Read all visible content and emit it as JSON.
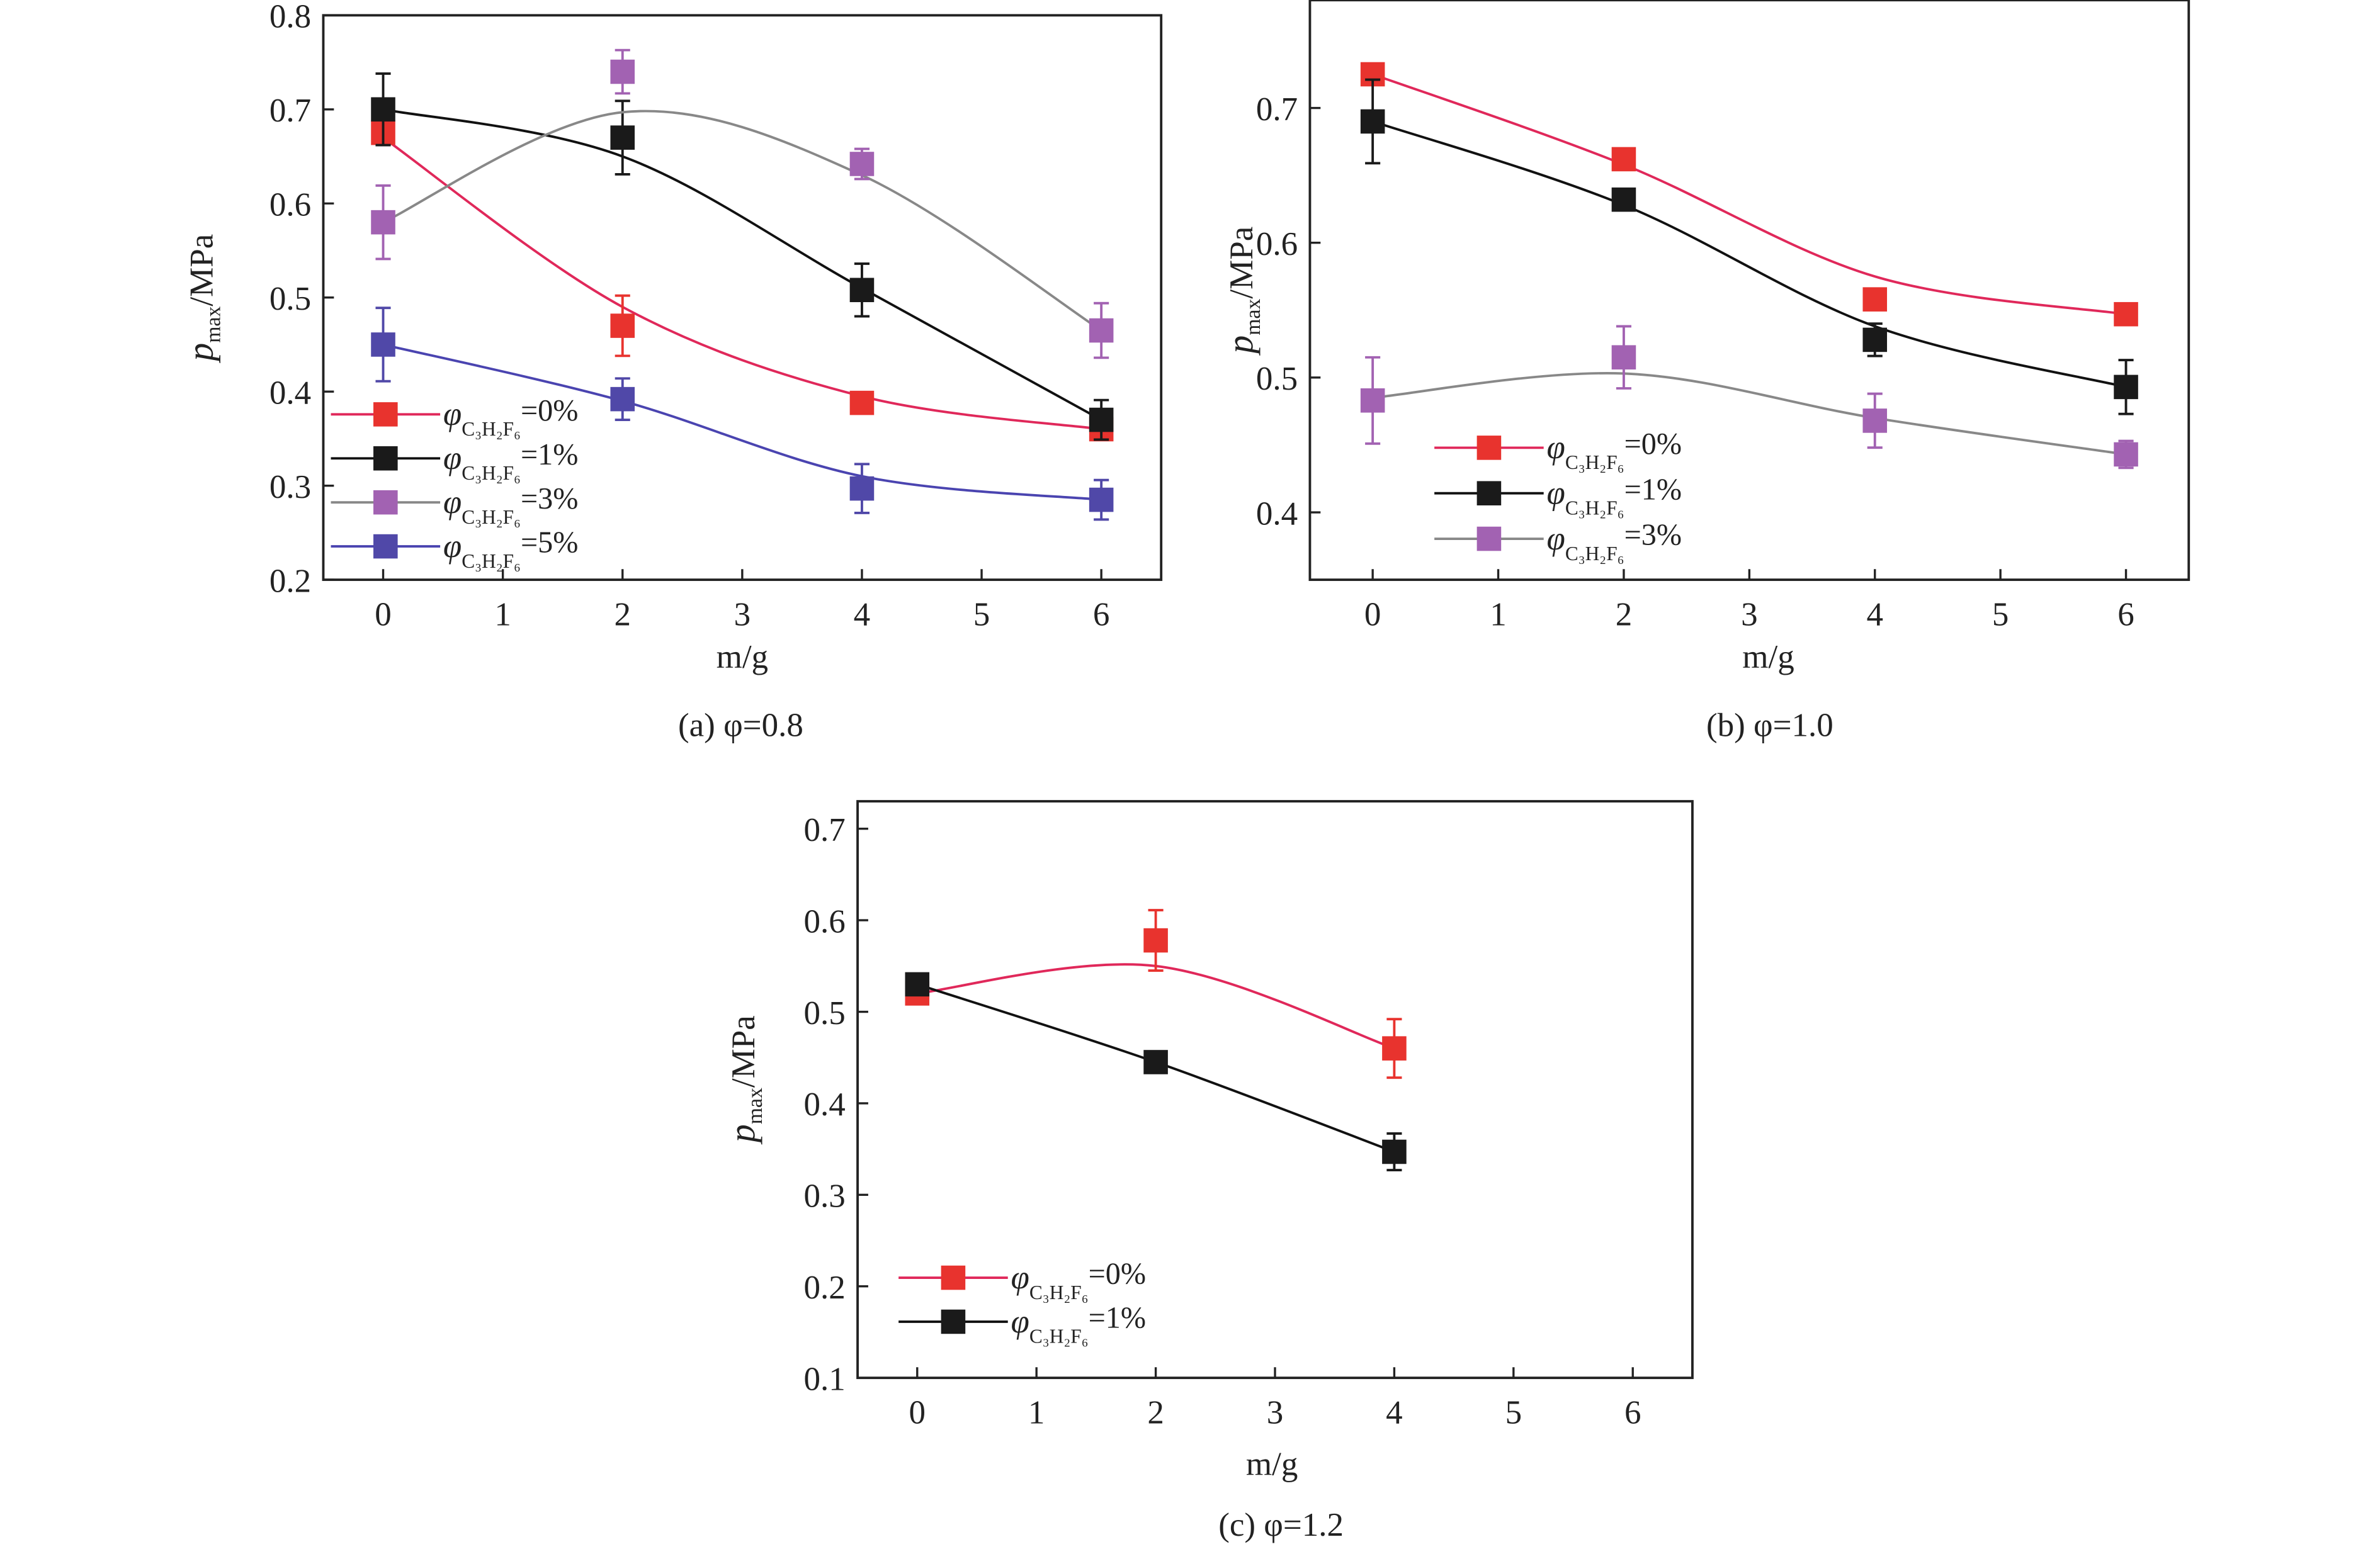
{
  "chart_data": [
    {
      "type": "line",
      "caption": "(a) φ=0.8",
      "xlabel": "m/g",
      "ylabel": {
        "main": "p",
        "sub": "max",
        "unit": "/MPa"
      },
      "xlim": [
        -0.5,
        6.5
      ],
      "ylim": [
        0.2,
        0.8
      ],
      "xticks": [
        0,
        1,
        2,
        3,
        4,
        5,
        6
      ],
      "yticks": [
        0.2,
        0.3,
        0.4,
        0.5,
        0.6,
        0.7,
        0.8
      ],
      "legend_position": "bottom-left",
      "x": [
        0,
        2,
        4,
        6
      ],
      "series": [
        {
          "name": "φC3H2F6=0%",
          "symbol": "φ",
          "sub": "C₃H₂F₆",
          "suffix": "=0%",
          "marker_color": "#e8332e",
          "line_color": "#e0285a",
          "values": [
            0.675,
            0.47,
            0.388,
            0.36
          ],
          "errors": [
            0.01,
            0.032,
            0.005,
            0.01
          ],
          "fit": [
            0.67,
            0.49,
            0.395,
            0.36
          ]
        },
        {
          "name": "φC3H2F6=1%",
          "symbol": "φ",
          "sub": "C₃H₂F₆",
          "suffix": "=1%",
          "marker_color": "#1a1a1a",
          "line_color": "#111111",
          "values": [
            0.7,
            0.67,
            0.508,
            0.37
          ],
          "errors": [
            0.038,
            0.039,
            0.028,
            0.021
          ],
          "fit": [
            0.7,
            0.65,
            0.51,
            0.37
          ]
        },
        {
          "name": "φC3H2F6=3%",
          "symbol": "φ",
          "sub": "C₃H₂F₆",
          "suffix": "=3%",
          "marker_color": "#a262b2",
          "line_color": "#888888",
          "values": [
            0.58,
            0.74,
            0.642,
            0.465
          ],
          "errors": [
            0.039,
            0.023,
            0.016,
            0.029
          ],
          "fit": [
            0.58,
            0.697,
            0.63,
            0.465
          ]
        },
        {
          "name": "φC3H2F6=5%",
          "symbol": "φ",
          "sub": "C₃H₂F₆",
          "suffix": "=5%",
          "marker_color": "#5048a8",
          "line_color": "#4a44b0",
          "values": [
            0.45,
            0.392,
            0.297,
            0.285
          ],
          "errors": [
            0.039,
            0.022,
            0.026,
            0.021
          ],
          "fit": [
            0.45,
            0.39,
            0.31,
            0.285
          ]
        }
      ]
    },
    {
      "type": "line",
      "caption": "(b) φ=1.0",
      "xlabel": "m/g",
      "ylabel": {
        "main": "p",
        "sub": "max",
        "unit": "/MPa"
      },
      "xlim": [
        -0.5,
        6.5
      ],
      "ylim": [
        0.35,
        0.78
      ],
      "xticks": [
        0,
        1,
        2,
        3,
        4,
        5,
        6
      ],
      "yticks": [
        0.4,
        0.5,
        0.6,
        0.7
      ],
      "legend_position": "bottom-left",
      "x": [
        0,
        2,
        4,
        6
      ],
      "series": [
        {
          "name": "φC3H2F6=0%",
          "symbol": "φ",
          "sub": "C₃H₂F₆",
          "suffix": "=0%",
          "marker_color": "#e8332e",
          "line_color": "#e0285a",
          "values": [
            0.725,
            0.662,
            0.558,
            0.547
          ],
          "errors": [
            0.004,
            0.004,
            0.004,
            0.004
          ],
          "fit": [
            0.725,
            0.658,
            0.575,
            0.547
          ]
        },
        {
          "name": "φC3H2F6=1%",
          "symbol": "φ",
          "sub": "C₃H₂F₆",
          "suffix": "=1%",
          "marker_color": "#1a1a1a",
          "line_color": "#111111",
          "values": [
            0.69,
            0.632,
            0.528,
            0.493
          ],
          "errors": [
            0.031,
            0.006,
            0.012,
            0.02
          ],
          "fit": [
            0.69,
            0.628,
            0.538,
            0.493
          ]
        },
        {
          "name": "φC3H2F6=3%",
          "symbol": "φ",
          "sub": "C₃H₂F₆",
          "suffix": "=3%",
          "marker_color": "#a262b2",
          "line_color": "#888888",
          "values": [
            0.483,
            0.515,
            0.468,
            0.443
          ],
          "errors": [
            0.032,
            0.023,
            0.02,
            0.01
          ],
          "fit": [
            0.485,
            0.503,
            0.47,
            0.443
          ]
        }
      ]
    },
    {
      "type": "line",
      "caption": "(c) φ=1.2",
      "xlabel": "m/g",
      "ylabel": {
        "main": "p",
        "sub": "max",
        "unit": "/MPa"
      },
      "xlim": [
        -0.5,
        6.5
      ],
      "ylim": [
        0.1,
        0.73
      ],
      "xticks": [
        0,
        1,
        2,
        3,
        4,
        5,
        6
      ],
      "yticks": [
        0.1,
        0.2,
        0.3,
        0.4,
        0.5,
        0.6,
        0.7
      ],
      "legend_position": "bottom-left",
      "x": [
        0,
        2,
        4
      ],
      "series": [
        {
          "name": "φC3H2F6=0%",
          "symbol": "φ",
          "sub": "C₃H₂F₆",
          "suffix": "=0%",
          "marker_color": "#e8332e",
          "line_color": "#e0285a",
          "values": [
            0.52,
            0.578,
            0.46
          ],
          "errors": [
            0.01,
            0.033,
            0.032
          ],
          "fit": [
            0.52,
            0.55,
            0.46
          ]
        },
        {
          "name": "φC3H2F6=1%",
          "symbol": "φ",
          "sub": "C₃H₂F₆",
          "suffix": "=1%",
          "marker_color": "#1a1a1a",
          "line_color": "#111111",
          "values": [
            0.53,
            0.445,
            0.347
          ],
          "errors": [
            0.008,
            0.005,
            0.02
          ],
          "fit": [
            0.53,
            0.445,
            0.347
          ]
        }
      ]
    }
  ]
}
